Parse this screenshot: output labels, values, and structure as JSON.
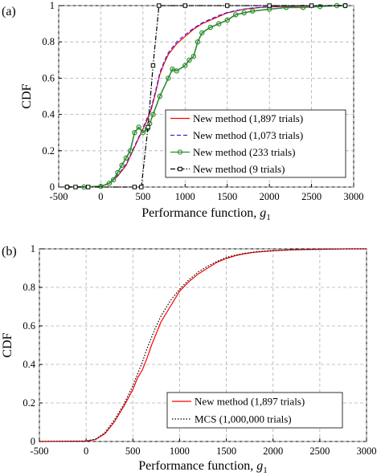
{
  "chart_data": [
    {
      "panel_label": "(a)",
      "type": "line",
      "ylabel": "CDF",
      "xlabel": "Performance function, ",
      "xlabel_symbol": "g",
      "xlabel_subscript": "1",
      "xlim": [
        -500,
        3000
      ],
      "ylim": [
        0,
        1
      ],
      "xticks": [
        "-500",
        "0",
        "500",
        "1000",
        "1500",
        "2000",
        "2500",
        "3000"
      ],
      "yticks": [
        "0",
        "0.2",
        "0.4",
        "0.6",
        "0.8",
        "1"
      ],
      "grid": true,
      "legend_position": "bottom-right",
      "series": [
        {
          "name": "New method (1,897 trials)",
          "color": "#ff0000",
          "style": "solid",
          "marker": "none",
          "x": [
            -400,
            0,
            100,
            200,
            300,
            350,
            400,
            450,
            500,
            550,
            600,
            650,
            700,
            750,
            800,
            850,
            900,
            1000,
            1100,
            1200,
            1300,
            1400,
            1500,
            1600,
            1700,
            1800,
            1900,
            2000,
            2200,
            2400,
            2600,
            2900
          ],
          "y": [
            0,
            0.003,
            0.02,
            0.06,
            0.12,
            0.17,
            0.22,
            0.27,
            0.32,
            0.37,
            0.43,
            0.52,
            0.62,
            0.68,
            0.73,
            0.76,
            0.79,
            0.83,
            0.87,
            0.9,
            0.92,
            0.94,
            0.96,
            0.97,
            0.98,
            0.985,
            0.99,
            0.993,
            0.996,
            0.998,
            0.999,
            1
          ]
        },
        {
          "name": "New method (1,073 trials)",
          "color": "#2a2ae0",
          "style": "dashed",
          "marker": "none",
          "x": [
            -400,
            0,
            100,
            200,
            300,
            350,
            400,
            450,
            500,
            550,
            600,
            650,
            700,
            750,
            800,
            850,
            900,
            1000,
            1100,
            1200,
            1300,
            1400,
            1500,
            1600,
            1700,
            1800,
            1900,
            2000,
            2200,
            2400,
            2600,
            2900
          ],
          "y": [
            0,
            0.004,
            0.022,
            0.065,
            0.125,
            0.175,
            0.225,
            0.275,
            0.325,
            0.38,
            0.44,
            0.53,
            0.63,
            0.69,
            0.74,
            0.77,
            0.8,
            0.84,
            0.875,
            0.905,
            0.925,
            0.945,
            0.962,
            0.972,
            0.981,
            0.987,
            0.991,
            0.994,
            0.997,
            0.999,
            1,
            1
          ]
        },
        {
          "name": "New method (233 trials)",
          "color": "#2e8b2e",
          "style": "solid",
          "marker": "circle",
          "x": [
            -400,
            -200,
            0,
            100,
            150,
            200,
            250,
            300,
            350,
            400,
            450,
            500,
            550,
            580,
            620,
            700,
            800,
            850,
            900,
            1000,
            1050,
            1100,
            1150,
            1200,
            1300,
            1400,
            1500,
            1600,
            1700,
            1800,
            2000,
            2200,
            2400,
            2600,
            2800,
            2900
          ],
          "y": [
            0,
            0,
            0.004,
            0.02,
            0.04,
            0.08,
            0.12,
            0.16,
            0.2,
            0.3,
            0.33,
            0.3,
            0.32,
            0.35,
            0.4,
            0.5,
            0.6,
            0.65,
            0.64,
            0.67,
            0.7,
            0.72,
            0.8,
            0.85,
            0.88,
            0.9,
            0.92,
            0.95,
            0.96,
            0.97,
            0.98,
            0.99,
            0.99,
            0.995,
            1,
            1
          ]
        },
        {
          "name": "New method (9 trials)",
          "color": "#000000",
          "style": "dashdot",
          "marker": "square",
          "x": [
            -400,
            -300,
            -150,
            400,
            480,
            560,
            620,
            690,
            1000,
            1500,
            2000,
            2500,
            2900
          ],
          "y": [
            0,
            0,
            0,
            0,
            0,
            0.33,
            0.67,
            1,
            1,
            1,
            1,
            1,
            1
          ]
        }
      ]
    },
    {
      "panel_label": "(b)",
      "type": "line",
      "ylabel": "CDF",
      "xlabel": "Performance function, ",
      "xlabel_symbol": "g",
      "xlabel_subscript": "1",
      "xlim": [
        -500,
        3000
      ],
      "ylim": [
        0,
        1
      ],
      "xticks": [
        "-500",
        "0",
        "500",
        "1000",
        "1500",
        "2000",
        "2500",
        "3000"
      ],
      "yticks": [
        "0",
        "0.2",
        "0.4",
        "0.6",
        "0.8",
        "1"
      ],
      "grid": true,
      "legend_position": "bottom-right",
      "series": [
        {
          "name": "New method (1,897 trials)",
          "color": "#ff0000",
          "style": "solid",
          "marker": "none",
          "x": [
            -500,
            0,
            100,
            200,
            300,
            400,
            500,
            550,
            600,
            650,
            700,
            750,
            800,
            900,
            1000,
            1100,
            1200,
            1300,
            1400,
            1500,
            1600,
            1700,
            1800,
            2000,
            2200,
            2500,
            2800,
            3000
          ],
          "y": [
            0,
            0.002,
            0.01,
            0.04,
            0.1,
            0.18,
            0.27,
            0.33,
            0.37,
            0.43,
            0.5,
            0.56,
            0.62,
            0.7,
            0.78,
            0.83,
            0.87,
            0.9,
            0.93,
            0.95,
            0.965,
            0.975,
            0.982,
            0.99,
            0.995,
            0.998,
            1,
            1
          ]
        },
        {
          "name": "MCS (1,000,000 trials)",
          "color": "#000000",
          "style": "dotted",
          "marker": "none",
          "x": [
            -500,
            0,
            100,
            200,
            300,
            400,
            500,
            550,
            600,
            650,
            700,
            750,
            800,
            900,
            1000,
            1100,
            1200,
            1300,
            1400,
            1500,
            1600,
            1700,
            1800,
            2000,
            2200,
            2500,
            2800,
            3000
          ],
          "y": [
            0,
            0.002,
            0.012,
            0.045,
            0.11,
            0.19,
            0.29,
            0.35,
            0.41,
            0.48,
            0.54,
            0.6,
            0.65,
            0.73,
            0.79,
            0.84,
            0.88,
            0.91,
            0.935,
            0.955,
            0.968,
            0.977,
            0.984,
            0.991,
            0.995,
            0.998,
            1,
            1
          ]
        }
      ]
    }
  ]
}
